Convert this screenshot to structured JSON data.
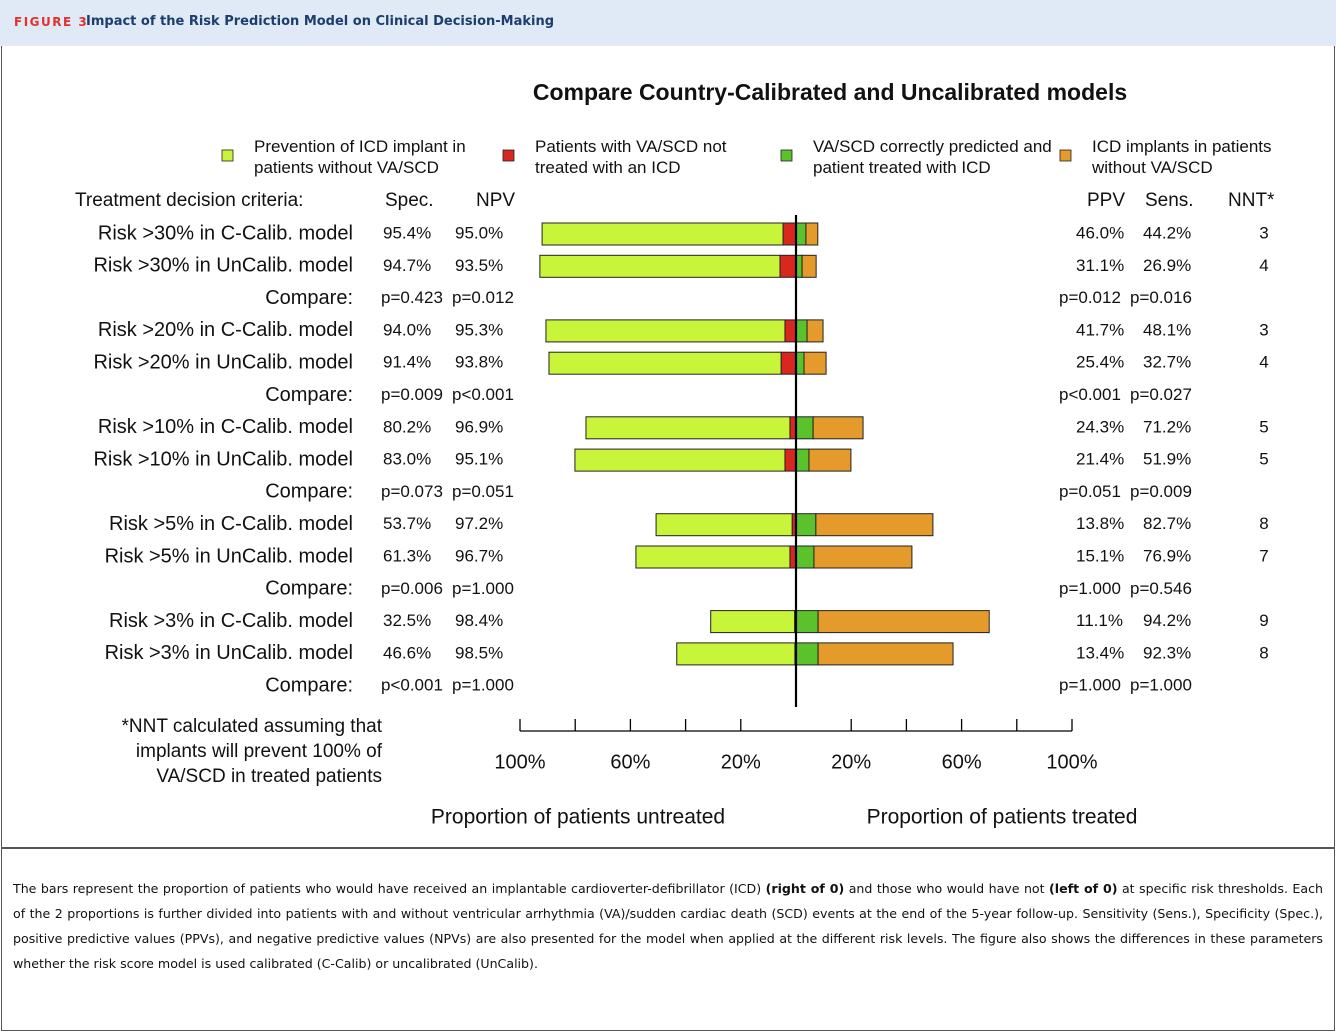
{
  "header": {
    "figure_label": "FIGURE 3",
    "title": "Impact of the Risk Prediction Model on Clinical Decision-Making"
  },
  "chart_data": {
    "type": "diverging-bar",
    "title": "Compare Country-Calibrated and Uncalibrated models",
    "categories": [
      "Risk >30% in C-Calib. model",
      "Risk >30% in UnCalib. model",
      "Risk >20% in C-Calib. model",
      "Risk >20% in UnCalib. model",
      "Risk >10% in C-Calib. model",
      "Risk >10% in UnCalib. model",
      "Risk >5% in C-Calib. model",
      "Risk >5% in UnCalib. model",
      "Risk >3% in C-Calib. model",
      "Risk >3% in UnCalib. model"
    ],
    "series": [
      {
        "name": "Prevention of ICD implant in patients without VA/SCD",
        "color": "#c8f43a",
        "values": [
          -87.3,
          -87.0,
          -86.6,
          -84.1,
          -73.9,
          -76.1,
          -49.3,
          -55.8,
          -30.4,
          -42.8
        ]
      },
      {
        "name": "Patients with VA/SCD not treated with an ICD",
        "color": "#d9261f",
        "values": [
          -4.7,
          -5.8,
          -4.0,
          -5.4,
          -2.2,
          -4.0,
          -1.4,
          -2.2,
          -0.5,
          -0.4
        ]
      },
      {
        "name": "VA/SCD correctly predicted and patient treated with ICD",
        "color": "#5cc22c",
        "values": [
          3.6,
          2.2,
          4.0,
          2.9,
          6.2,
          4.7,
          7.2,
          6.5,
          8.0,
          8.0
        ]
      },
      {
        "name": "ICD implants in patients without VA/SCD",
        "color": "#e49b2c",
        "values": [
          4.3,
          5.1,
          5.8,
          8.0,
          18.1,
          15.2,
          42.4,
          35.5,
          62.0,
          48.9
        ]
      }
    ],
    "xlim": [
      -100,
      100
    ],
    "xticks": [
      {
        "value": -100,
        "label": "100%"
      },
      {
        "value": -80,
        "label": null
      },
      {
        "value": -60,
        "label": "60%"
      },
      {
        "value": -40,
        "label": null
      },
      {
        "value": -20,
        "label": "20%"
      },
      {
        "value": 20,
        "label": "20%"
      },
      {
        "value": 40,
        "label": null
      },
      {
        "value": 60,
        "label": "60%"
      },
      {
        "value": 80,
        "label": null
      },
      {
        "value": 100,
        "label": "100%"
      }
    ],
    "x_axis_labels": [
      "Proportion of patients untreated",
      "Proportion of patients treated"
    ],
    "table": {
      "criteria_header": "Treatment decision criteria:",
      "left_headers": [
        "Spec.",
        "NPV"
      ],
      "right_headers": [
        "PPV",
        "Sens.",
        "NNT*"
      ],
      "left": [
        [
          "95.4%",
          "95.0%"
        ],
        [
          "94.7%",
          "93.5%"
        ],
        [
          "94.0%",
          "95.3%"
        ],
        [
          "91.4%",
          "93.8%"
        ],
        [
          "80.2%",
          "96.9%"
        ],
        [
          "83.0%",
          "95.1%"
        ],
        [
          "53.7%",
          "97.2%"
        ],
        [
          "61.3%",
          "96.7%"
        ],
        [
          "32.5%",
          "98.4%"
        ],
        [
          "46.6%",
          "98.5%"
        ]
      ],
      "right": [
        [
          "46.0%",
          "44.2%",
          3
        ],
        [
          "31.1%",
          "26.9%",
          4
        ],
        [
          "41.7%",
          "48.1%",
          3
        ],
        [
          "25.4%",
          "32.7%",
          4
        ],
        [
          "24.3%",
          "71.2%",
          5
        ],
        [
          "21.4%",
          "51.9%",
          5
        ],
        [
          "13.8%",
          "82.7%",
          8
        ],
        [
          "15.1%",
          "76.9%",
          7
        ],
        [
          "11.1%",
          "94.2%",
          9
        ],
        [
          "13.4%",
          "92.3%",
          8
        ]
      ],
      "compare_label": "Compare:",
      "compare": [
        [
          "p=0.423",
          "p=0.012",
          "p=0.012",
          "p=0.016"
        ],
        [
          "p=0.009",
          "p<0.001",
          "p<0.001",
          "p=0.027"
        ],
        [
          "p=0.073",
          "p=0.051",
          "p=0.051",
          "p=0.009"
        ],
        [
          "p=0.006",
          "p=1.000",
          "p=1.000",
          "p=0.546"
        ],
        [
          "p<0.001",
          "p=1.000",
          "p=1.000",
          "p=1.000"
        ]
      ]
    },
    "footnote": [
      "*NNT calculated assuming that",
      "implants will prevent 100% of",
      "VA/SCD in treated patients"
    ]
  },
  "caption": [
    {
      "text": "The bars represent the proportion of patients who would have received an implantable cardioverter-defibrillator (ICD) ",
      "bold": false
    },
    {
      "text": "(right of 0)",
      "bold": true
    },
    {
      "text": " and those who would have not ",
      "bold": false
    },
    {
      "text": "(left of 0)",
      "bold": true
    },
    {
      "text": " at specific risk thresholds. Each of the 2 proportions is further divided into patients with and without ventricular arrhythmia (VA)/sudden cardiac death (SCD) events at the end of the 5-year follow-up. Sensitivity (Sens.), Specificity (Spec.), positive predictive values (PPVs), and negative predictive values (NPVs) are also presented for the model when applied at the different risk levels. The figure also shows the differences in these parameters whether the risk score model is used calibrated (C-Calib) or uncalibrated (UnCalib).",
      "bold": false
    }
  ]
}
